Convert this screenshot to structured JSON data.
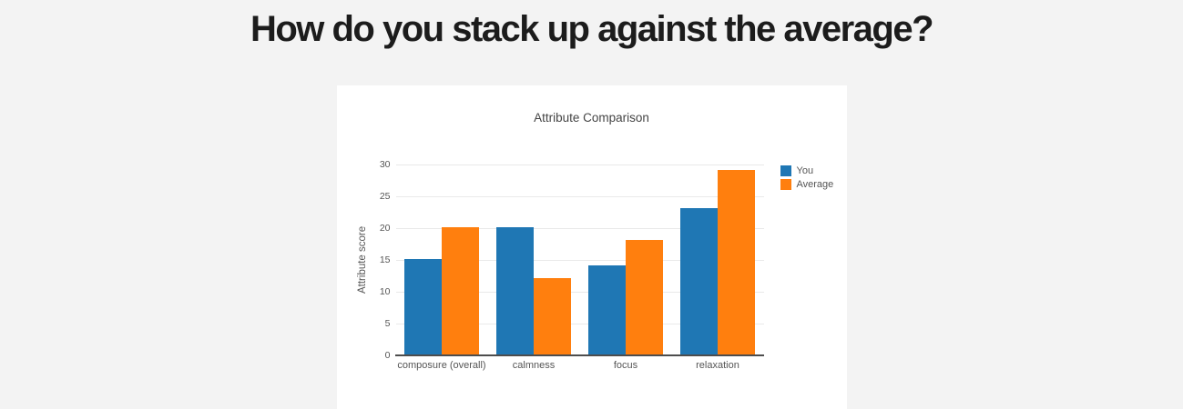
{
  "page": {
    "title": "How do you stack up against the average?",
    "background_color": "#f3f3f3",
    "card_color": "#ffffff"
  },
  "chart_data": {
    "type": "bar",
    "title": "Attribute Comparison",
    "categories": [
      "composure (overall)",
      "calmness",
      "focus",
      "relaxation"
    ],
    "series": [
      {
        "name": "You",
        "color": "#1f77b4",
        "values": [
          15,
          20,
          14,
          23
        ]
      },
      {
        "name": "Average",
        "color": "#ff7f0e",
        "values": [
          20,
          12,
          18,
          29
        ]
      }
    ],
    "xlabel": "",
    "ylabel": "Attribute score",
    "ylim": [
      0,
      30
    ],
    "yticks": [
      0,
      5,
      10,
      15,
      20,
      25,
      30
    ],
    "grid": true,
    "legend_position": "right",
    "colors": {
      "grid": "#e9e9e9",
      "axis_line": "#4d4d4d",
      "title_text": "#444444",
      "tick_text": "#555555"
    }
  }
}
